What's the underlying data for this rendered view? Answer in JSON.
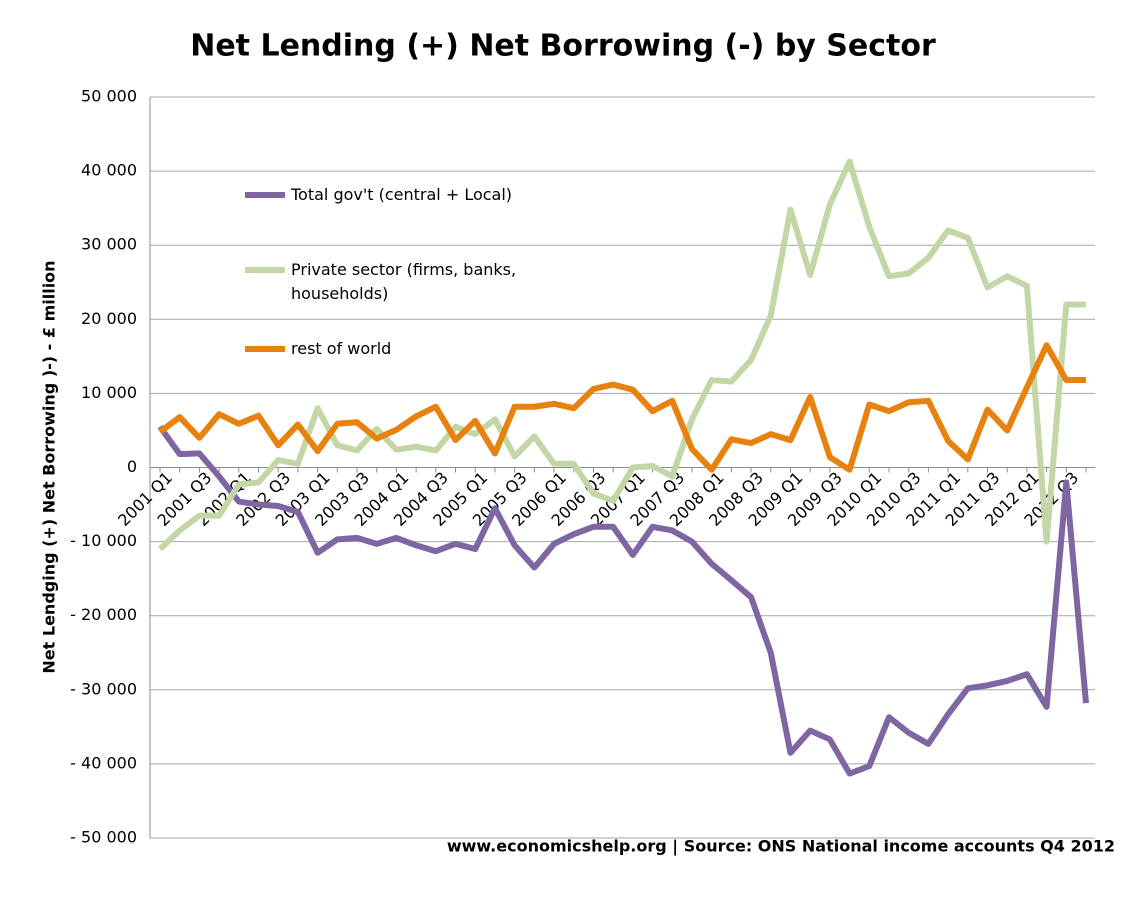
{
  "chart_data": {
    "type": "line",
    "title": "Net Lending (+) Net Borrowing (-) by Sector",
    "y_label": "Net Lendging (+) Net Borrowing )-) - £ million",
    "source": "www.economicshelp.org | Source: ONS National income accounts Q4 2012",
    "categories": [
      "2001 Q1",
      null,
      "2001 Q3",
      null,
      "2002 Q1",
      null,
      "2002 Q3",
      null,
      "2003 Q1",
      null,
      "2003 Q3",
      null,
      "2004 Q1",
      null,
      "2004 Q3",
      null,
      "2005 Q1",
      null,
      "2005 Q3",
      null,
      "2006 Q1",
      null,
      "2006 Q3",
      null,
      "2007 Q1",
      null,
      "2007 Q3",
      null,
      "2008 Q1",
      null,
      "2008 Q3",
      null,
      "2009 Q1",
      null,
      "2009 Q3",
      null,
      "2010 Q1",
      null,
      "2010 Q3",
      null,
      "2011 Q1",
      null,
      "2011 Q3",
      null,
      "2012 Q1",
      null,
      "2012 Q3",
      null
    ],
    "series": [
      {
        "name": "Total gov't (central + Local)",
        "color": "#7f66a3",
        "values": [
          5500,
          1800,
          1900,
          -1200,
          -4600,
          -5000,
          -5200,
          -6000,
          -11500,
          -9700,
          -9500,
          -10300,
          -9500,
          -10500,
          -11300,
          -10300,
          -11000,
          -5500,
          -10500,
          -13500,
          -10300,
          -9000,
          -8000,
          -8000,
          -11800,
          -8000,
          -8500,
          -10000,
          -13000,
          -15200,
          -17500,
          -25000,
          -38500,
          -35500,
          -36700,
          -41300,
          -40300,
          -33700,
          -35800,
          -37300,
          -33300,
          -29800,
          -29400,
          -28800,
          -27900,
          -32300,
          -2000,
          -31800
        ]
      },
      {
        "name": "Private sector (firms, banks, households)",
        "color": "#c3d6a6",
        "values": [
          -11000,
          -8500,
          -6500,
          -6500,
          -2300,
          -2000,
          1000,
          500,
          8000,
          3000,
          2300,
          5200,
          2400,
          2800,
          2300,
          5500,
          4500,
          6500,
          1500,
          4200,
          500,
          500,
          -3500,
          -4500,
          0,
          200,
          -1200,
          6500,
          11800,
          11600,
          14500,
          20500,
          34800,
          26000,
          35500,
          41300,
          32500,
          25800,
          26200,
          28300,
          32000,
          31000,
          24300,
          25800,
          24500,
          -10000,
          22000,
          22000
        ]
      },
      {
        "name": "rest of world",
        "color": "#e8820f",
        "values": [
          4800,
          6800,
          4000,
          7200,
          5900,
          7000,
          3000,
          5800,
          2200,
          5900,
          6100,
          3900,
          5100,
          6900,
          8200,
          3700,
          6300,
          1900,
          8200,
          8200,
          8600,
          8000,
          10600,
          11200,
          10500,
          7600,
          9000,
          2500,
          -300,
          3800,
          3300,
          4500,
          3700,
          9500,
          1400,
          -300,
          8500,
          7600,
          8800,
          9000,
          3600,
          1100,
          7800,
          5000,
          10800,
          16500,
          11800,
          11800
        ]
      }
    ],
    "ylim": [
      -50000,
      50000
    ],
    "yticks": [
      {
        "value": -50000,
        "label": "- 50 000"
      },
      {
        "value": -40000,
        "label": "- 40 000"
      },
      {
        "value": -30000,
        "label": "- 30 000"
      },
      {
        "value": -20000,
        "label": "- 20 000"
      },
      {
        "value": -10000,
        "label": "- 10 000"
      },
      0,
      {
        "value": 10000,
        "label": "10 000"
      },
      {
        "value": 20000,
        "label": "20 000"
      },
      {
        "value": 30000,
        "label": "30 000"
      },
      {
        "value": 40000,
        "label": "40 000"
      },
      {
        "value": 50000,
        "label": "50 000"
      }
    ],
    "grid": true
  }
}
